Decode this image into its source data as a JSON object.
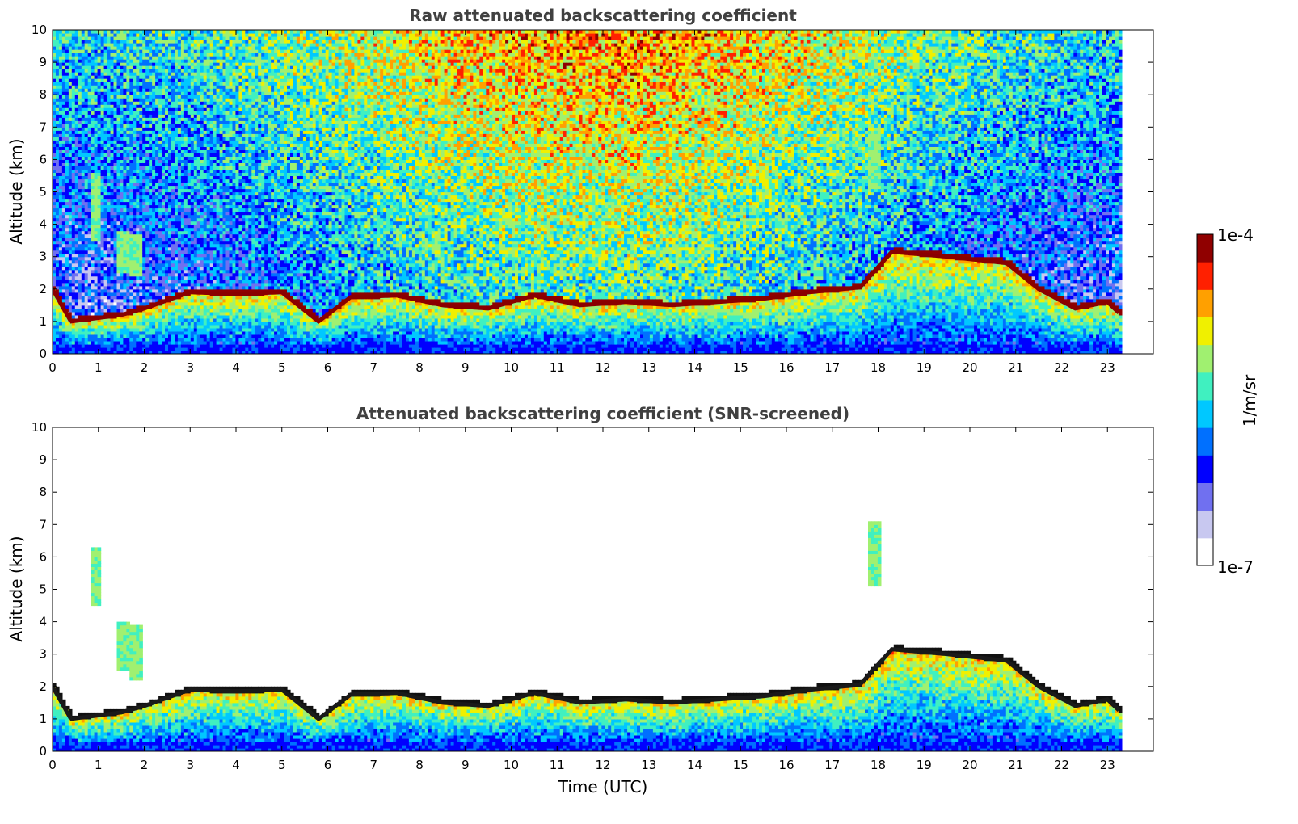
{
  "chart_data": [
    {
      "type": "heatmap",
      "title": "Raw attenuated backscattering coefficient",
      "ylabel": "Altitude (km)",
      "xlabel": "",
      "xlim": [
        0,
        24
      ],
      "ylim": [
        0,
        10
      ],
      "x_ticks": [
        "0",
        "1",
        "2",
        "3",
        "4",
        "5",
        "6",
        "7",
        "8",
        "9",
        "10",
        "11",
        "12",
        "13",
        "14",
        "15",
        "16",
        "17",
        "18",
        "19",
        "20",
        "21",
        "22",
        "23"
      ],
      "y_ticks": [
        "0",
        "1",
        "2",
        "3",
        "4",
        "5",
        "6",
        "7",
        "8",
        "9",
        "10"
      ],
      "data_end_hour": 23.3,
      "features": {
        "cloud_base_km": [
          [
            0,
            2.0
          ],
          [
            0.4,
            1.0
          ],
          [
            1.5,
            1.2
          ],
          [
            2.0,
            1.4
          ],
          [
            3.0,
            1.9
          ],
          [
            4.0,
            1.85
          ],
          [
            5.0,
            1.9
          ],
          [
            5.8,
            1.0
          ],
          [
            6.5,
            1.75
          ],
          [
            7.5,
            1.8
          ],
          [
            8.5,
            1.5
          ],
          [
            9.5,
            1.4
          ],
          [
            10.5,
            1.8
          ],
          [
            11.5,
            1.5
          ],
          [
            12.5,
            1.6
          ],
          [
            13.5,
            1.5
          ],
          [
            14.5,
            1.6
          ],
          [
            15.5,
            1.7
          ],
          [
            16.5,
            1.9
          ],
          [
            17.6,
            2.05
          ],
          [
            18.3,
            3.15
          ],
          [
            19.5,
            3.0
          ],
          [
            20.8,
            2.8
          ],
          [
            21.5,
            2.0
          ],
          [
            22.3,
            1.4
          ],
          [
            23.0,
            1.6
          ],
          [
            23.3,
            1.2
          ]
        ],
        "cirrus_bands_km": [
          [
            0.9,
            5.5,
            3.5
          ],
          [
            1.5,
            3.8,
            2.5
          ],
          [
            1.8,
            3.7,
            2.4
          ],
          [
            17.9,
            6.8,
            5.0
          ]
        ],
        "background_noise": "high"
      }
    },
    {
      "type": "heatmap",
      "title": "Attenuated backscattering coefficient (SNR-screened)",
      "ylabel": "Altitude (km)",
      "xlabel": "Time (UTC)",
      "xlim": [
        0,
        24
      ],
      "ylim": [
        0,
        10
      ],
      "x_ticks": [
        "0",
        "1",
        "2",
        "3",
        "4",
        "5",
        "6",
        "7",
        "8",
        "9",
        "10",
        "11",
        "12",
        "13",
        "14",
        "15",
        "16",
        "17",
        "18",
        "19",
        "20",
        "21",
        "22",
        "23"
      ],
      "y_ticks": [
        "0",
        "1",
        "2",
        "3",
        "4",
        "5",
        "6",
        "7",
        "8",
        "9",
        "10"
      ],
      "data_end_hour": 23.3,
      "features": {
        "cloud_base_km": [
          [
            0,
            2.0
          ],
          [
            0.4,
            1.0
          ],
          [
            1.5,
            1.2
          ],
          [
            2.0,
            1.4
          ],
          [
            3.0,
            1.9
          ],
          [
            4.0,
            1.85
          ],
          [
            5.0,
            1.9
          ],
          [
            5.8,
            1.0
          ],
          [
            6.5,
            1.75
          ],
          [
            7.5,
            1.8
          ],
          [
            8.5,
            1.5
          ],
          [
            9.5,
            1.4
          ],
          [
            10.5,
            1.8
          ],
          [
            11.5,
            1.5
          ],
          [
            12.5,
            1.6
          ],
          [
            13.5,
            1.5
          ],
          [
            14.5,
            1.6
          ],
          [
            15.5,
            1.7
          ],
          [
            16.5,
            1.9
          ],
          [
            17.6,
            2.05
          ],
          [
            18.3,
            3.15
          ],
          [
            19.5,
            3.0
          ],
          [
            20.8,
            2.8
          ],
          [
            21.5,
            2.0
          ],
          [
            22.3,
            1.4
          ],
          [
            23.0,
            1.6
          ],
          [
            23.3,
            1.2
          ]
        ],
        "cirrus_bands_km": [
          [
            0.9,
            6.2,
            4.5
          ],
          [
            1.5,
            4.0,
            2.5
          ],
          [
            1.8,
            3.9,
            2.2
          ],
          [
            17.9,
            7.0,
            5.0
          ]
        ],
        "background_noise": "screened"
      }
    }
  ],
  "colorbar": {
    "label": "1/m/sr",
    "max_label": "1e-4",
    "min_label": "1e-7",
    "scale": "log",
    "colors": [
      "#ffffff",
      "#c8c8f0",
      "#7070f0",
      "#0000ff",
      "#0070ff",
      "#00c8ff",
      "#40f0c0",
      "#a0f070",
      "#f0f000",
      "#ffa000",
      "#ff2000",
      "#900000"
    ]
  }
}
